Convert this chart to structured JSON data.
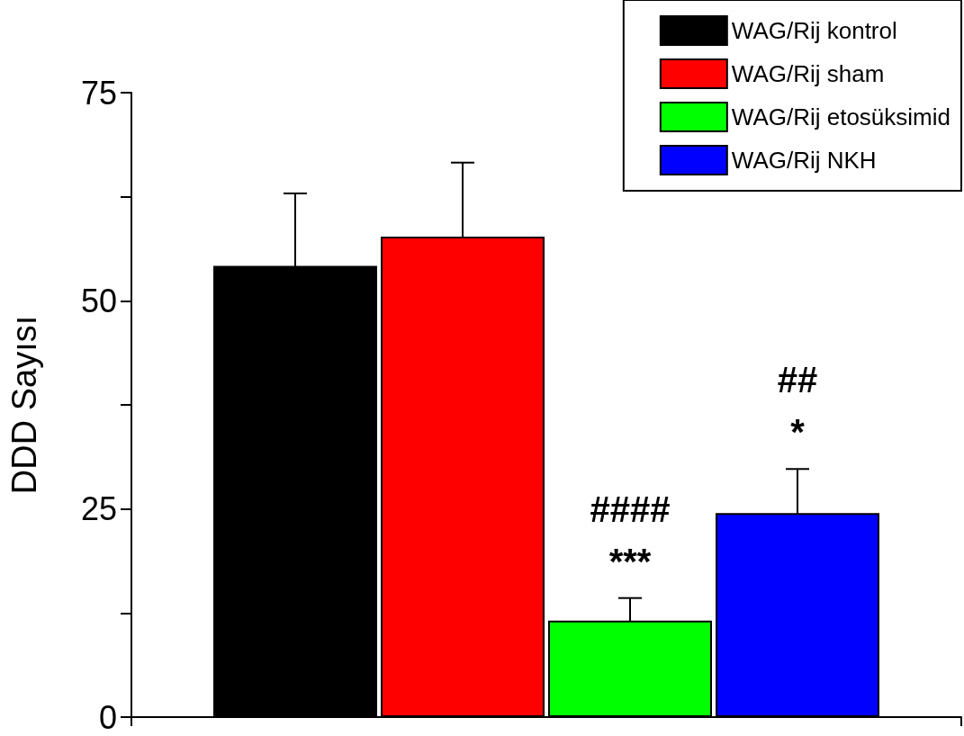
{
  "chart_data": {
    "type": "bar",
    "ylabel": "DDD Sayısı",
    "categories": [
      null
    ],
    "series": [
      {
        "name": "WAG/Rij kontrol",
        "color": "#000000",
        "values": [
          54.2
        ],
        "errors": [
          8.7
        ]
      },
      {
        "name": "WAG/Rij sham",
        "color": "#ff0000",
        "values": [
          57.7
        ],
        "errors": [
          8.9
        ]
      },
      {
        "name": "WAG/Rij etosüksimid",
        "color": "#00ff00",
        "values": [
          11.6
        ],
        "errors": [
          2.7
        ],
        "value_labels": [
          "####\n***"
        ]
      },
      {
        "name": "WAG/Rij NKH",
        "color": "#0000ff",
        "values": [
          24.5
        ],
        "errors": [
          5.3
        ],
        "value_labels": [
          "##\n*"
        ]
      }
    ],
    "ylim": [
      0,
      75
    ],
    "yticks": [
      0,
      {
        "value": 12.5,
        "label": null
      },
      25,
      {
        "value": 37.5,
        "label": null
      },
      50,
      {
        "value": 62.5,
        "label": null
      },
      75
    ],
    "grid": false,
    "legend": "top right",
    "tick_labels": "y"
  }
}
